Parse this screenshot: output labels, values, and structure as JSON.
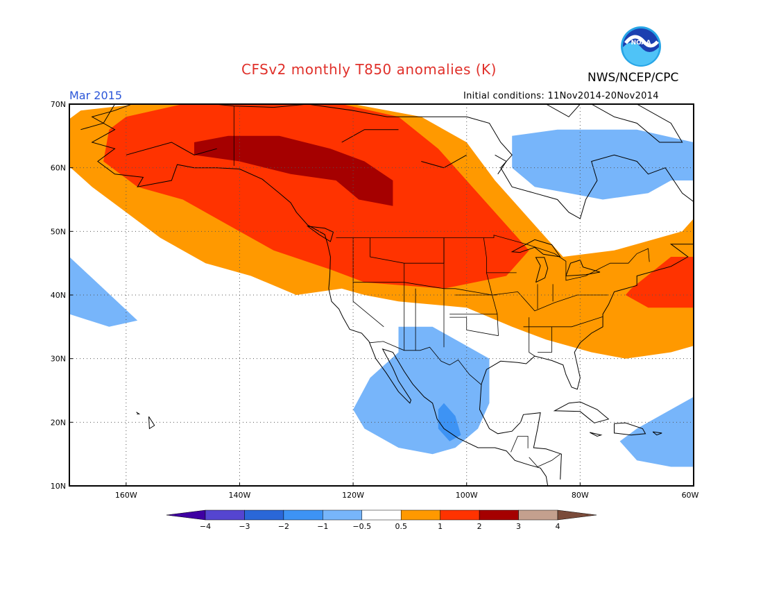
{
  "header": {
    "title": "CFSv2 monthly T850 anomalies (K)",
    "agency": "NWS/NCEP/CPC",
    "logo_text": "NOAA",
    "period": "Mar 2015",
    "initial_conditions": "Initial conditions: 11Nov2014-20Nov2014"
  },
  "map": {
    "lon_range": [
      -170,
      -60
    ],
    "lat_range": [
      10,
      70
    ],
    "lon_ticks": [
      {
        "lon": -160,
        "label": "160W"
      },
      {
        "lon": -140,
        "label": "140W"
      },
      {
        "lon": -120,
        "label": "120W"
      },
      {
        "lon": -100,
        "label": "100W"
      },
      {
        "lon": -80,
        "label": "80W"
      },
      {
        "lon": -60,
        "label": "60W"
      }
    ],
    "lat_ticks": [
      {
        "lat": 10,
        "label": "10N"
      },
      {
        "lat": 20,
        "label": "20N"
      },
      {
        "lat": 30,
        "label": "30N"
      },
      {
        "lat": 40,
        "label": "40N"
      },
      {
        "lat": 50,
        "label": "50N"
      },
      {
        "lat": 60,
        "label": "60N"
      },
      {
        "lat": 70,
        "label": "70N"
      }
    ],
    "grid": true,
    "anomaly_regions": [
      {
        "level": "0.5 to 1",
        "color": "#ff9900",
        "points": [
          [
            -171,
            67
          ],
          [
            -168,
            69
          ],
          [
            -158,
            70
          ],
          [
            -120,
            70
          ],
          [
            -108,
            68
          ],
          [
            -100,
            64
          ],
          [
            -95,
            58
          ],
          [
            -88,
            51
          ],
          [
            -83,
            46
          ],
          [
            -74,
            47
          ],
          [
            -62,
            50
          ],
          [
            -60,
            52
          ],
          [
            -60,
            32
          ],
          [
            -64,
            31
          ],
          [
            -72,
            30
          ],
          [
            -78,
            31
          ],
          [
            -86,
            33
          ],
          [
            -92,
            35
          ],
          [
            -100,
            38
          ],
          [
            -112,
            39
          ],
          [
            -118,
            40
          ],
          [
            -122,
            41
          ],
          [
            -130,
            40
          ],
          [
            -138,
            43
          ],
          [
            -146,
            45
          ],
          [
            -154,
            49
          ],
          [
            -160,
            53
          ],
          [
            -166,
            57
          ],
          [
            -171,
            61
          ]
        ]
      },
      {
        "level": "1 to 2",
        "color": "#ff3300",
        "points": [
          [
            -163,
            66
          ],
          [
            -160,
            68
          ],
          [
            -150,
            70
          ],
          [
            -122,
            70
          ],
          [
            -112,
            68
          ],
          [
            -105,
            63
          ],
          [
            -99,
            57
          ],
          [
            -94,
            52
          ],
          [
            -89,
            47
          ],
          [
            -93,
            43
          ],
          [
            -104,
            41
          ],
          [
            -118,
            42
          ],
          [
            -124,
            44
          ],
          [
            -134,
            47
          ],
          [
            -142,
            51
          ],
          [
            -150,
            55
          ],
          [
            -158,
            57
          ],
          [
            -164,
            61
          ]
        ]
      },
      {
        "level": "1 to 2",
        "color": "#ff3300",
        "points": [
          [
            -71,
            41
          ],
          [
            -64,
            46
          ],
          [
            -60,
            46
          ],
          [
            -60,
            38
          ],
          [
            -68,
            38
          ],
          [
            -72,
            40
          ]
        ]
      },
      {
        "level": "2 to 3",
        "color": "#a50000",
        "points": [
          [
            -148,
            64
          ],
          [
            -142,
            65
          ],
          [
            -133,
            65
          ],
          [
            -124,
            63
          ],
          [
            -118,
            61
          ],
          [
            -113,
            58
          ],
          [
            -113,
            54
          ],
          [
            -119,
            55
          ],
          [
            -123,
            58
          ],
          [
            -131,
            59
          ],
          [
            -140,
            61
          ],
          [
            -148,
            62
          ]
        ]
      },
      {
        "level": "-1 to -0.5",
        "color": "#77b5fa",
        "points": [
          [
            -92,
            65
          ],
          [
            -84,
            66
          ],
          [
            -70,
            66
          ],
          [
            -60,
            64
          ],
          [
            -60,
            58
          ],
          [
            -64,
            58
          ],
          [
            -68,
            56
          ],
          [
            -76,
            55
          ],
          [
            -82,
            56
          ],
          [
            -88,
            57
          ],
          [
            -92,
            60
          ]
        ]
      },
      {
        "level": "-1 to -0.5",
        "color": "#77b5fa",
        "points": [
          [
            -170,
            46
          ],
          [
            -164,
            41
          ],
          [
            -158,
            36
          ],
          [
            -163,
            35
          ],
          [
            -170,
            37
          ]
        ]
      },
      {
        "level": "-1 to -0.5",
        "color": "#77b5fa",
        "points": [
          [
            -112,
            35
          ],
          [
            -106,
            35
          ],
          [
            -100,
            32
          ],
          [
            -96,
            30
          ],
          [
            -96,
            23
          ],
          [
            -98,
            19
          ],
          [
            -102,
            16
          ],
          [
            -106,
            15
          ],
          [
            -112,
            16
          ],
          [
            -118,
            19
          ],
          [
            -120,
            22
          ],
          [
            -117,
            27
          ],
          [
            -112,
            31
          ]
        ]
      },
      {
        "level": "-1 to -0.5",
        "color": "#77b5fa",
        "points": [
          [
            -60,
            24
          ],
          [
            -64,
            22
          ],
          [
            -70,
            19
          ],
          [
            -73,
            17
          ],
          [
            -70,
            14
          ],
          [
            -64,
            13
          ],
          [
            -60,
            13
          ]
        ]
      },
      {
        "level": "-2 to -1",
        "color": "#3d93f4",
        "points": [
          [
            -104,
            23
          ],
          [
            -102,
            21
          ],
          [
            -101,
            18
          ],
          [
            -103,
            17
          ],
          [
            -105,
            19
          ],
          [
            -105,
            22
          ]
        ]
      }
    ],
    "colorbar": {
      "colors": [
        "#3f00a2",
        "#5545d0",
        "#2a67d8",
        "#3d93f4",
        "#77b5fa",
        "#ffffff",
        "#ff9900",
        "#ff3300",
        "#a50000",
        "#c4a08e",
        "#7a4b3a"
      ],
      "labels": [
        "−4",
        "−3",
        "−2",
        "−1",
        "−0.5",
        "0.5",
        "1",
        "2",
        "3",
        "4"
      ]
    }
  }
}
